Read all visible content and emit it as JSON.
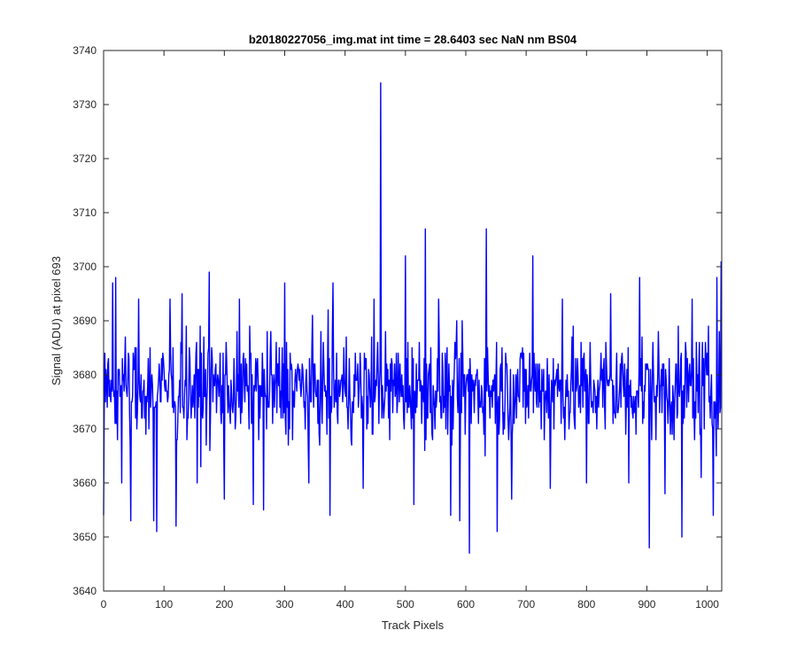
{
  "chart_data": {
    "type": "line",
    "title": "b20180227056_img.mat int time = 28.6403 sec  NaN nm BS04",
    "xlabel": "Track Pixels",
    "ylabel": "Signal (ADU) at pixel 693",
    "xlim": [
      0,
      1024
    ],
    "ylim": [
      3640,
      3740
    ],
    "xticks": [
      0,
      100,
      200,
      300,
      400,
      500,
      600,
      700,
      800,
      900,
      1000
    ],
    "yticks": [
      3640,
      3650,
      3660,
      3670,
      3680,
      3690,
      3700,
      3710,
      3720,
      3730,
      3740
    ],
    "grid": false,
    "box": true,
    "series": [
      {
        "color": "#0000ff",
        "noise": {
          "start": 0,
          "end": 1024,
          "step": 1,
          "mean": 3677.5,
          "spread": 7.5,
          "min": 3661,
          "max": 3696
        },
        "features": [
          {
            "x": 0,
            "y": 3654
          },
          {
            "x": 15,
            "y": 3697
          },
          {
            "x": 20,
            "y": 3698
          },
          {
            "x": 30,
            "y": 3660
          },
          {
            "x": 45,
            "y": 3653
          },
          {
            "x": 58,
            "y": 3694
          },
          {
            "x": 83,
            "y": 3653
          },
          {
            "x": 88,
            "y": 3651
          },
          {
            "x": 110,
            "y": 3694
          },
          {
            "x": 120,
            "y": 3652
          },
          {
            "x": 130,
            "y": 3695
          },
          {
            "x": 155,
            "y": 3660
          },
          {
            "x": 175,
            "y": 3699
          },
          {
            "x": 200,
            "y": 3657
          },
          {
            "x": 225,
            "y": 3694
          },
          {
            "x": 248,
            "y": 3656
          },
          {
            "x": 265,
            "y": 3655
          },
          {
            "x": 300,
            "y": 3697
          },
          {
            "x": 340,
            "y": 3660
          },
          {
            "x": 375,
            "y": 3654
          },
          {
            "x": 380,
            "y": 3697
          },
          {
            "x": 430,
            "y": 3659
          },
          {
            "x": 448,
            "y": 3694
          },
          {
            "x": 459,
            "y": 3734
          },
          {
            "x": 472,
            "y": 3672
          },
          {
            "x": 500,
            "y": 3702
          },
          {
            "x": 514,
            "y": 3656
          },
          {
            "x": 533,
            "y": 3707
          },
          {
            "x": 555,
            "y": 3694
          },
          {
            "x": 575,
            "y": 3654
          },
          {
            "x": 590,
            "y": 3653
          },
          {
            "x": 606,
            "y": 3647
          },
          {
            "x": 634,
            "y": 3707
          },
          {
            "x": 652,
            "y": 3651
          },
          {
            "x": 676,
            "y": 3657
          },
          {
            "x": 711,
            "y": 3702
          },
          {
            "x": 740,
            "y": 3659
          },
          {
            "x": 760,
            "y": 3694
          },
          {
            "x": 800,
            "y": 3660
          },
          {
            "x": 840,
            "y": 3695
          },
          {
            "x": 870,
            "y": 3660
          },
          {
            "x": 888,
            "y": 3698
          },
          {
            "x": 904,
            "y": 3648
          },
          {
            "x": 930,
            "y": 3658
          },
          {
            "x": 958,
            "y": 3650
          },
          {
            "x": 975,
            "y": 3694
          },
          {
            "x": 990,
            "y": 3661
          },
          {
            "x": 1010,
            "y": 3654
          },
          {
            "x": 1016,
            "y": 3698
          },
          {
            "x": 1023,
            "y": 3701
          }
        ]
      }
    ]
  }
}
